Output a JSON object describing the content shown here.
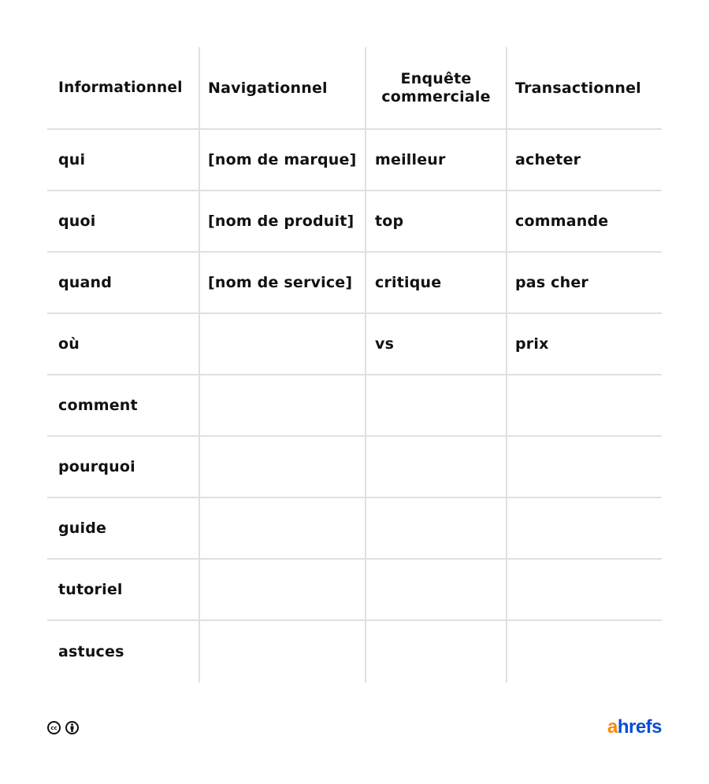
{
  "table": {
    "headers": [
      "Informationnel",
      "Navigationnel",
      "Enquête commerciale",
      "Transactionnel"
    ],
    "rows": [
      [
        "qui",
        "[nom de marque]",
        "meilleur",
        "acheter"
      ],
      [
        "quoi",
        "[nom de produit]",
        "top",
        "commande"
      ],
      [
        "quand",
        "[nom de service]",
        "critique",
        "pas cher"
      ],
      [
        "où",
        "",
        "vs",
        "prix"
      ],
      [
        "comment",
        "",
        "",
        ""
      ],
      [
        "pourquoi",
        "",
        "",
        ""
      ],
      [
        "guide",
        "",
        "",
        ""
      ],
      [
        "tutoriel",
        "",
        "",
        ""
      ],
      [
        "astuces",
        "",
        "",
        ""
      ]
    ]
  },
  "footer": {
    "license_icons": [
      "cc-icon",
      "attribution-icon"
    ],
    "logo": {
      "part1": "a",
      "part2": "hrefs",
      "color1": "#ff8800",
      "color2": "#0a4dd6"
    }
  }
}
